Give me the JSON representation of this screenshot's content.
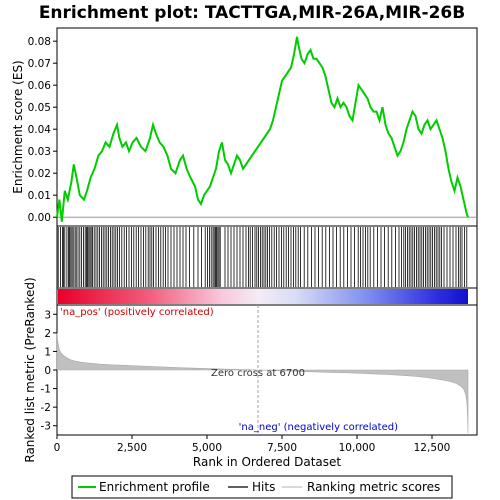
{
  "chart_data": {
    "type": "line",
    "title": "Enrichment plot: TACTTGA,MIR-26A,MIR-26B",
    "panels": {
      "enrichment": {
        "ylabel": "Enrichment score (ES)",
        "ylim": [
          -0.004,
          0.086
        ],
        "yticks": [
          0.0,
          0.01,
          0.02,
          0.03,
          0.04,
          0.05,
          0.06,
          0.07,
          0.08
        ],
        "ytick_labels": [
          "0.00",
          "0.01",
          "0.02",
          "0.03",
          "0.04",
          "0.05",
          "0.06",
          "0.07",
          "0.08"
        ],
        "series": [
          {
            "name": "Enrichment profile",
            "color": "#00cc00",
            "x": [
              0,
              80,
              160,
              260,
              360,
              480,
              560,
              650,
              760,
              900,
              1000,
              1120,
              1250,
              1380,
              1500,
              1620,
              1750,
              1880,
              2000,
              2080,
              2180,
              2300,
              2400,
              2520,
              2650,
              2800,
              2950,
              3100,
              3200,
              3300,
              3420,
              3550,
              3680,
              3800,
              3950,
              4100,
              4200,
              4320,
              4450,
              4600,
              4700,
              4800,
              4900,
              5000,
              5100,
              5200,
              5300,
              5400,
              5500,
              5600,
              5700,
              5800,
              5900,
              6000,
              6100,
              6200,
              6300,
              6400,
              6500,
              6600,
              6700,
              6800,
              6900,
              7000,
              7100,
              7200,
              7300,
              7400,
              7500,
              7600,
              7700,
              7800,
              7900,
              8000,
              8050,
              8150,
              8250,
              8350,
              8450,
              8550,
              8650,
              8750,
              8850,
              8950,
              9050,
              9150,
              9250,
              9350,
              9450,
              9550,
              9650,
              9750,
              9850,
              9950,
              10050,
              10150,
              10250,
              10350,
              10450,
              10550,
              10650,
              10750,
              10850,
              10950,
              11050,
              11150,
              11250,
              11350,
              11450,
              11550,
              11650,
              11750,
              11850,
              11950,
              12050,
              12150,
              12250,
              12350,
              12450,
              12550,
              12650,
              12750,
              12850,
              12950,
              13050,
              13150,
              13250,
              13350,
              13450,
              13550,
              13650,
              13700
            ],
            "y": [
              0.0,
              0.008,
              -0.002,
              0.012,
              0.008,
              0.016,
              0.024,
              0.018,
              0.01,
              0.008,
              0.012,
              0.018,
              0.022,
              0.028,
              0.03,
              0.034,
              0.032,
              0.038,
              0.042,
              0.036,
              0.032,
              0.034,
              0.03,
              0.034,
              0.036,
              0.032,
              0.03,
              0.036,
              0.042,
              0.038,
              0.034,
              0.032,
              0.028,
              0.022,
              0.02,
              0.026,
              0.028,
              0.022,
              0.018,
              0.014,
              0.008,
              0.006,
              0.01,
              0.012,
              0.014,
              0.018,
              0.022,
              0.03,
              0.034,
              0.026,
              0.024,
              0.02,
              0.024,
              0.028,
              0.026,
              0.022,
              0.024,
              0.026,
              0.028,
              0.03,
              0.032,
              0.034,
              0.036,
              0.038,
              0.04,
              0.044,
              0.05,
              0.056,
              0.062,
              0.064,
              0.066,
              0.068,
              0.074,
              0.082,
              0.078,
              0.072,
              0.07,
              0.074,
              0.076,
              0.072,
              0.072,
              0.07,
              0.068,
              0.064,
              0.058,
              0.052,
              0.05,
              0.054,
              0.05,
              0.052,
              0.05,
              0.046,
              0.044,
              0.052,
              0.06,
              0.058,
              0.056,
              0.054,
              0.05,
              0.048,
              0.048,
              0.044,
              0.05,
              0.042,
              0.038,
              0.036,
              0.032,
              0.028,
              0.03,
              0.034,
              0.04,
              0.044,
              0.048,
              0.046,
              0.04,
              0.038,
              0.042,
              0.044,
              0.04,
              0.042,
              0.044,
              0.04,
              0.036,
              0.03,
              0.022,
              0.016,
              0.012,
              0.018,
              0.014,
              0.008,
              0.002,
              0.0
            ]
          }
        ]
      },
      "hits": {
        "legend_label": "Hits",
        "positions": [
          40,
          120,
          180,
          220,
          260,
          330,
          380,
          420,
          460,
          500,
          540,
          600,
          640,
          700,
          760,
          820,
          880,
          940,
          980,
          1020,
          1060,
          1100,
          1140,
          1180,
          1240,
          1300,
          1360,
          1420,
          1480,
          1540,
          1600,
          1660,
          1720,
          1780,
          1840,
          1900,
          1960,
          2020,
          2080,
          2160,
          2240,
          2320,
          2400,
          2480,
          2560,
          2640,
          2720,
          2800,
          2880,
          2960,
          3040,
          3100,
          3160,
          3220,
          3300,
          3380,
          3460,
          3540,
          3620,
          3700,
          3800,
          3900,
          4000,
          4100,
          4200,
          4300,
          4420,
          4560,
          4700,
          4820,
          4940,
          5020,
          5080,
          5140,
          5200,
          5240,
          5280,
          5320,
          5360,
          5400,
          5440,
          5600,
          5700,
          5800,
          5900,
          6000,
          6100,
          6200,
          6300,
          6380,
          6440,
          6520,
          6600,
          6660,
          6720,
          6780,
          6840,
          6900,
          6960,
          7020,
          7080,
          7160,
          7240,
          7320,
          7400,
          7480,
          7560,
          7640,
          7720,
          7800,
          7880,
          7960,
          8040,
          8120,
          8240,
          8360,
          8480,
          8600,
          8720,
          8840,
          8960,
          9080,
          9200,
          9320,
          9440,
          9560,
          9680,
          9800,
          9920,
          10040,
          10120,
          10200,
          10280,
          10360,
          10440,
          10560,
          10680,
          10800,
          10920,
          11040,
          11160,
          11280,
          11400,
          11480,
          11560,
          11620,
          11680,
          11740,
          11800,
          11860,
          11920,
          11980,
          12040,
          12100,
          12160,
          12220,
          12280,
          12340,
          12400,
          12460,
          12520,
          12580,
          12640,
          12700,
          12760,
          12820,
          12900,
          13000,
          13100,
          13200,
          13300,
          13380,
          13440,
          13500,
          13580,
          13660
        ]
      },
      "ranked_metric": {
        "legend_label": "Ranking metric scores",
        "ylabel": "Ranked list metric (PreRanked)",
        "ylim": [
          -3.5,
          3.5
        ],
        "yticks": [
          3,
          2,
          1,
          0,
          -1,
          -2,
          -3
        ],
        "ytick_labels": [
          "3",
          "2",
          "1",
          "0",
          "-1",
          "-2",
          "-3"
        ],
        "x": [
          0,
          20,
          60,
          120,
          200,
          300,
          450,
          600,
          800,
          1000,
          1400,
          1800,
          2400,
          3000,
          3600,
          4200,
          4800,
          5400,
          6000,
          6700,
          7400,
          8000,
          8600,
          9200,
          9800,
          10400,
          11000,
          11600,
          12000,
          12400,
          12800,
          13100,
          13300,
          13450,
          13550,
          13620,
          13660,
          13680,
          13700
        ],
        "y": [
          2.0,
          1.6,
          1.2,
          0.95,
          0.8,
          0.68,
          0.55,
          0.48,
          0.42,
          0.38,
          0.32,
          0.28,
          0.24,
          0.2,
          0.16,
          0.12,
          0.09,
          0.06,
          0.03,
          0.0,
          -0.04,
          -0.07,
          -0.1,
          -0.13,
          -0.16,
          -0.2,
          -0.24,
          -0.3,
          -0.35,
          -0.42,
          -0.52,
          -0.62,
          -0.72,
          -0.85,
          -1.0,
          -1.3,
          -1.7,
          -2.2,
          -3.4
        ],
        "zero_cross_rank": 6700
      }
    },
    "xlabel": "Rank in Ordered Dataset",
    "xlim": [
      0,
      14000
    ],
    "xticks": [
      0,
      2500,
      5000,
      7500,
      10000,
      12500
    ],
    "xtick_labels": [
      "0",
      "2,500",
      "5,000",
      "7,500",
      "10,000",
      "12,500"
    ],
    "n_genes": 13700,
    "grid": false,
    "legend_position": "bottom"
  },
  "annotations": {
    "pos_label": "'na_pos' (positively correlated)",
    "neg_label": "'na_neg' (negatively correlated)",
    "zero_cross_label": "Zero cross at 6700"
  },
  "legend": {
    "items": [
      {
        "label": "Enrichment profile",
        "color": "#00cc00"
      },
      {
        "label": "Hits",
        "color": "#000000"
      },
      {
        "label": "Ranking metric scores",
        "color": "#c0c0c0"
      }
    ]
  },
  "colors": {
    "pos_label": "#cc0000",
    "neg_label": "#0000cc",
    "metric_fill": "#c0c0c0",
    "zero_line": "#a0a0a0"
  }
}
